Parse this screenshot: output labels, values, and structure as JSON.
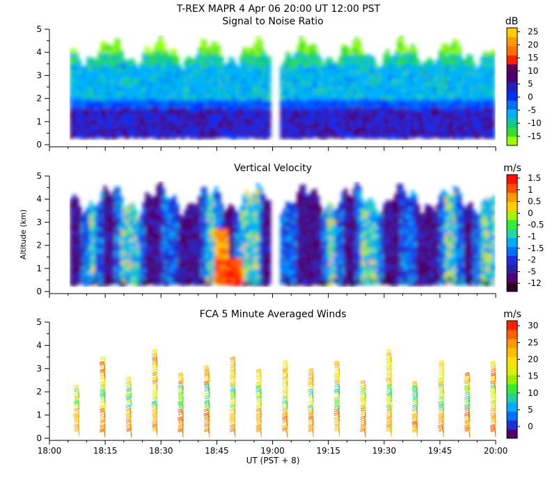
{
  "figure_title": "T-REX  MAPR  4 Apr 06  20:00 UT  12:00  PST",
  "x_axis": {
    "label": "UT  (PST + 8)",
    "ticks": [
      "18:00",
      "18:15",
      "18:30",
      "18:45",
      "19:00",
      "19:15",
      "19:30",
      "19:45",
      "20:00"
    ],
    "range_minutes": [
      0,
      120
    ]
  },
  "chart_data": [
    {
      "type": "heatmap",
      "title": "Signal to Noise Ratio",
      "ylabel": "",
      "ylim": [
        0,
        5
      ],
      "yticks": [
        "0",
        "1",
        "2",
        "3",
        "4",
        "5"
      ],
      "data_gap_ut": [
        "18:59",
        "19:02"
      ],
      "colorbar": {
        "unit": "dB",
        "colors": [
          "#99ff00",
          "#33dd33",
          "#11cc88",
          "#00b0ff",
          "#0070ff",
          "#0030ff",
          "#2020bb",
          "#480070",
          "#5a0060",
          "#ff2000",
          "#ff7000",
          "#ff9900",
          "#ffcc00"
        ],
        "labels": [
          "-15",
          "-10",
          "-5",
          "0",
          "5",
          "10",
          "15",
          "20",
          "25"
        ]
      }
    },
    {
      "type": "heatmap",
      "title": "Vertical Velocity",
      "ylabel": "Altitude (km)",
      "ylim": [
        0,
        5
      ],
      "yticks": [
        "0",
        "1",
        "2",
        "3",
        "4",
        "5"
      ],
      "data_gap_ut": [
        "18:59",
        "19:02"
      ],
      "colorbar": {
        "unit": "m/s",
        "colors": [
          "#300020",
          "#500070",
          "#2a20a0",
          "#1f2fe0",
          "#0070ff",
          "#00b0ff",
          "#22d8a0",
          "#33ee33",
          "#aaf000",
          "#ffd000",
          "#ff9900",
          "#ff5000",
          "#ff1000"
        ],
        "labels": [
          "-12",
          "-5",
          "-2",
          "-1.5",
          "-1",
          "-0.5",
          "0",
          "0.5",
          "1",
          "1.5"
        ]
      }
    },
    {
      "type": "barb",
      "title": "FCA 5 Minute Averaged Winds",
      "ylabel": "",
      "ylim": [
        0,
        5
      ],
      "yticks": [
        "0",
        "1",
        "2",
        "3",
        "4",
        "5"
      ],
      "profile_times_min": [
        8,
        15,
        22,
        29,
        36,
        43,
        50,
        57,
        64,
        71,
        78,
        85,
        92,
        99,
        106,
        113,
        120
      ],
      "colorbar": {
        "unit": "m/s",
        "colors": [
          "#500070",
          "#2030d0",
          "#0070ff",
          "#00b0ff",
          "#22d0a0",
          "#33ee33",
          "#99ee00",
          "#ddf000",
          "#ffe000",
          "#ffc000",
          "#ff9900",
          "#ff6000",
          "#ff2000"
        ],
        "labels": [
          "0",
          "5",
          "10",
          "15",
          "20",
          "25",
          "30"
        ]
      }
    }
  ]
}
